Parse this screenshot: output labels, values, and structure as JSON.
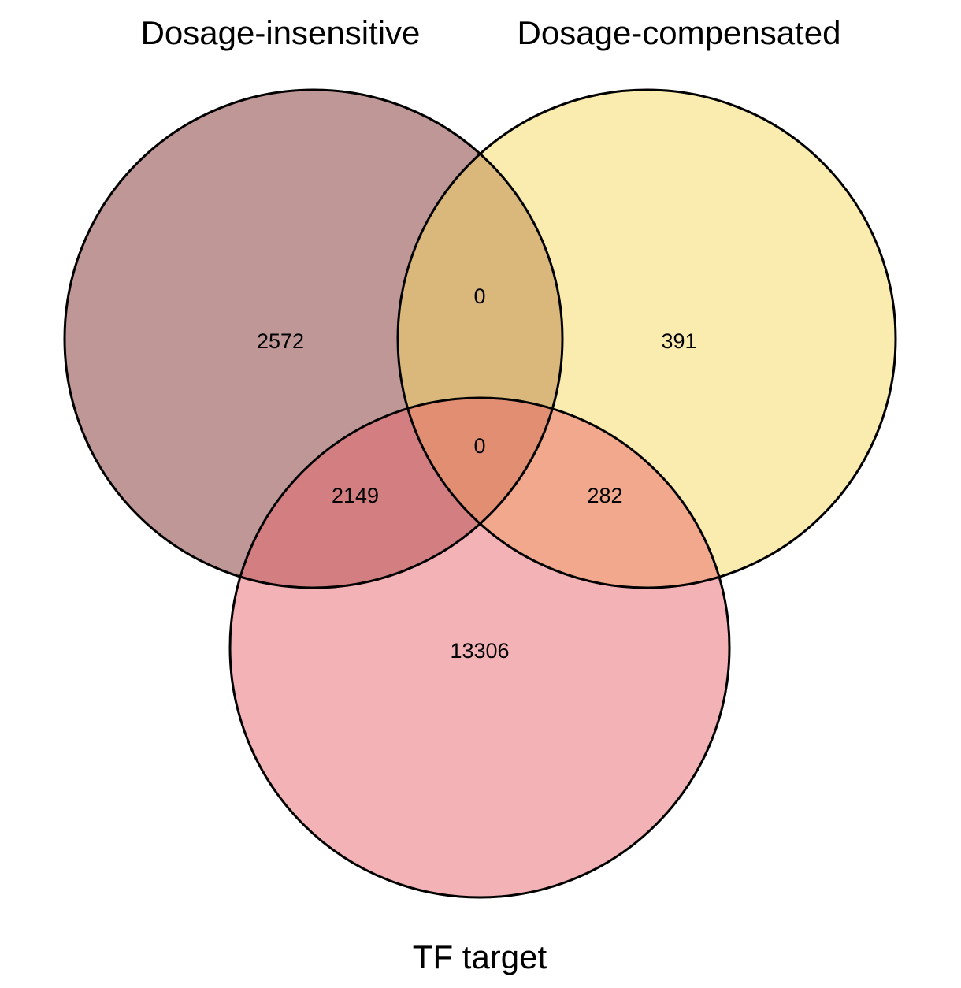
{
  "sets": [
    {
      "id": "A",
      "label": "Dosage-insensitive",
      "color": "#7f2f2f"
    },
    {
      "id": "B",
      "label": "Dosage-compensated",
      "color": "#f6d860"
    },
    {
      "id": "C",
      "label": "TF target",
      "color": "#e8666c"
    }
  ],
  "regions": {
    "A_only": "2572",
    "B_only": "391",
    "C_only": "13306",
    "AB_only": "0",
    "AC_only": "2149",
    "BC_only": "282",
    "ABC": "0"
  },
  "fill_opacity": 0.5
}
